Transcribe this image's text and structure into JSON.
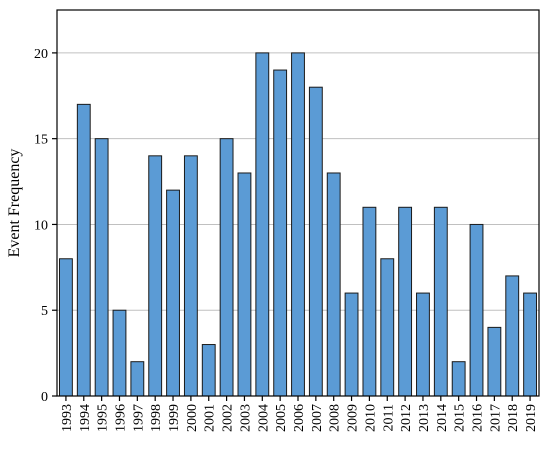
{
  "chart_data": {
    "type": "bar",
    "title": "",
    "xlabel": "",
    "ylabel": "Event Frequency",
    "categories": [
      "1993",
      "1994",
      "1995",
      "1996",
      "1997",
      "1998",
      "1999",
      "2000",
      "2001",
      "2002",
      "2003",
      "2004",
      "2005",
      "2006",
      "2007",
      "2008",
      "2009",
      "2010",
      "2011",
      "2012",
      "2013",
      "2014",
      "2015",
      "2016",
      "2017",
      "2018",
      "2019"
    ],
    "values": [
      8,
      17,
      15,
      5,
      2,
      14,
      12,
      14,
      3,
      15,
      13,
      20,
      19,
      20,
      18,
      13,
      6,
      11,
      8,
      11,
      6,
      11,
      2,
      10,
      4,
      7,
      6
    ],
    "ylim": [
      0,
      22.5
    ],
    "yticks": [
      0,
      5,
      10,
      15,
      20
    ],
    "grid": true,
    "colors": {
      "bar_fill": "#5b9bd5",
      "bar_stroke": "#1a1a1a",
      "grid": "#c0c0c0",
      "axis": "#000000"
    }
  }
}
